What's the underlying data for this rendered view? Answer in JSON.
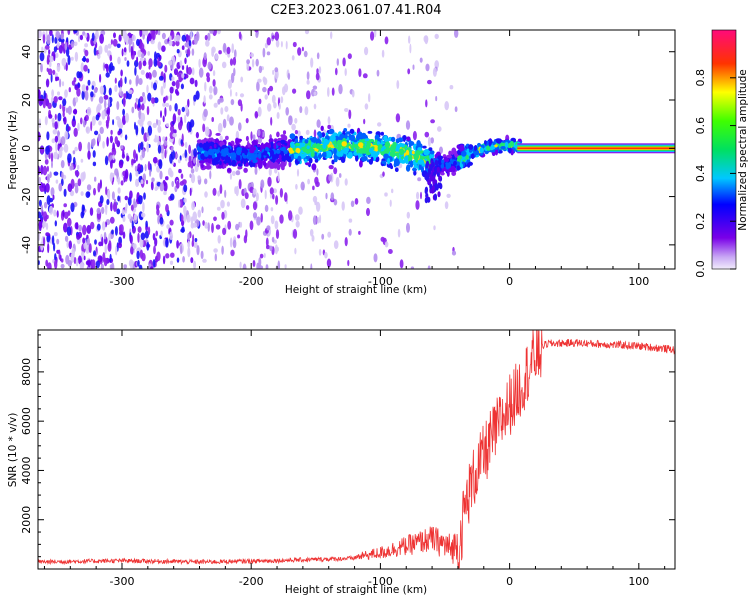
{
  "title": "C2E3.2023.061.07.41.R04",
  "chart_data": [
    {
      "type": "heatmap",
      "xlabel": "Height of straight line (km)",
      "ylabel": "Frequency (Hz)",
      "xlim": [
        -365,
        128
      ],
      "ylim": [
        -50,
        49
      ],
      "xticks": [
        -300,
        -200,
        -100,
        0,
        100
      ],
      "yticks": [
        -40,
        -20,
        0,
        20,
        40
      ],
      "xtick_labels": [
        "-300",
        "-200",
        "-100",
        "0",
        "100"
      ],
      "ytick_labels": [
        "-40",
        "-20",
        "0",
        "20",
        "40"
      ],
      "colorbar": {
        "label": "Normalized spectral amplitude",
        "range": [
          0,
          1
        ],
        "ticks": [
          0.0,
          0.2,
          0.4,
          0.6,
          0.8
        ],
        "tick_labels": [
          "0.0",
          "0.2",
          "0.4",
          "0.6",
          "0.8"
        ],
        "colors": [
          "#e6dcfa",
          "#7a00e8",
          "#0000ff",
          "#00c8ff",
          "#00ff40",
          "#ffff00",
          "#ff3300",
          "#ff0a7a"
        ]
      },
      "trace": {
        "x": [
          -240,
          -200,
          -170,
          -140,
          -120,
          -100,
          -80,
          -60,
          -50,
          -40,
          -30,
          -20,
          -10,
          0,
          128
        ],
        "y": [
          -2,
          -3,
          -1,
          1,
          1,
          0,
          -2,
          -6,
          -7,
          -5,
          -2,
          0,
          1,
          1,
          0
        ]
      }
    },
    {
      "type": "line",
      "xlabel": "Height of straight line (km)",
      "ylabel": "SNR (10 * v/v)",
      "xlim": [
        -365,
        128
      ],
      "ylim": [
        0,
        9700
      ],
      "xticks": [
        -300,
        -200,
        -100,
        0,
        100
      ],
      "yticks": [
        2000,
        4000,
        6000,
        8000
      ],
      "xtick_labels": [
        "-300",
        "-200",
        "-100",
        "0",
        "100"
      ],
      "ytick_labels": [
        "2000",
        "4000",
        "6000",
        "8000"
      ],
      "color": "#ee3333",
      "series": [
        {
          "name": "SNR",
          "x": [
            -365,
            -300,
            -240,
            -200,
            -150,
            -120,
            -100,
            -80,
            -60,
            -50,
            -45,
            -40,
            -35,
            -30,
            -25,
            -20,
            -15,
            -10,
            -5,
            0,
            5,
            10,
            15,
            20,
            25,
            30,
            50,
            80,
            100,
            128
          ],
          "y": [
            250,
            300,
            250,
            280,
            350,
            400,
            500,
            700,
            900,
            600,
            400,
            700,
            2500,
            3500,
            4200,
            4700,
            5300,
            5800,
            6300,
            6800,
            7200,
            7700,
            8300,
            8800,
            9050,
            9150,
            9180,
            9100,
            9050,
            8900
          ]
        }
      ]
    }
  ]
}
